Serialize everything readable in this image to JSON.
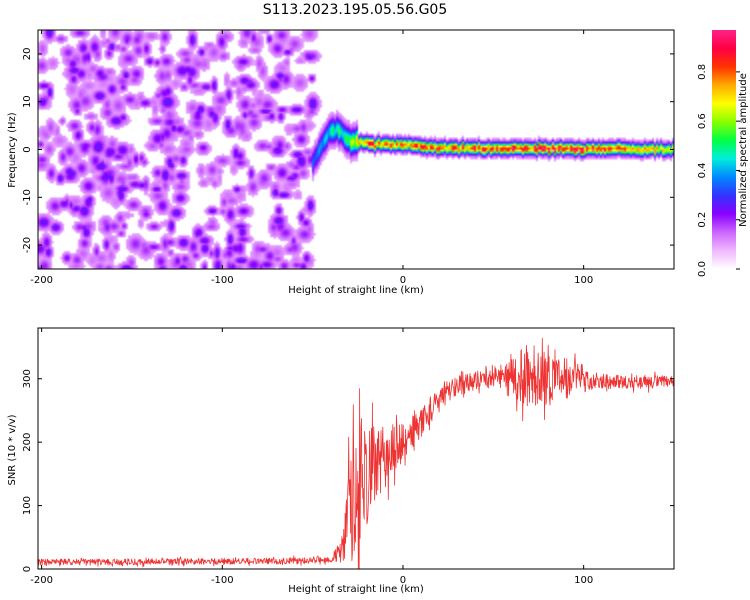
{
  "figure": {
    "title": "S113.2023.195.05.56.G05"
  },
  "chart_data": [
    {
      "type": "heatmap",
      "title": "S113.2023.195.05.56.G05",
      "xlabel": "Height of straight line (km)",
      "ylabel": "Frequency (Hz)",
      "xlim": [
        -202,
        150
      ],
      "ylim": [
        -25,
        25
      ],
      "x_ticks": [
        -200,
        -100,
        0,
        100
      ],
      "y_ticks": [
        -20,
        -10,
        0,
        10,
        20
      ],
      "grid": false,
      "noise_region": {
        "x_range": [
          -202,
          -50
        ],
        "y_range": [
          -25,
          25
        ],
        "max_amplitude": 0.2
      },
      "ridge": {
        "x_range": [
          -50,
          150
        ],
        "center_freq": [
          {
            "x": -50,
            "y": -3
          },
          {
            "x": -45,
            "y": 1
          },
          {
            "x": -40,
            "y": 4
          },
          {
            "x": -35,
            "y": 4
          },
          {
            "x": -30,
            "y": 2
          },
          {
            "x": -20,
            "y": 1.2
          },
          {
            "x": 0,
            "y": 1
          },
          {
            "x": 20,
            "y": 0.3
          },
          {
            "x": 60,
            "y": 0.2
          },
          {
            "x": 100,
            "y": 0.2
          },
          {
            "x": 150,
            "y": 0
          }
        ],
        "peak_amplitude": [
          {
            "x": -50,
            "y": 0.3
          },
          {
            "x": -30,
            "y": 0.5
          },
          {
            "x": -20,
            "y": 0.8
          },
          {
            "x": 0,
            "y": 0.75
          },
          {
            "x": 20,
            "y": 0.8
          },
          {
            "x": 60,
            "y": 0.85
          },
          {
            "x": 100,
            "y": 0.85
          },
          {
            "x": 150,
            "y": 0.6
          }
        ]
      },
      "colorbar": {
        "label": "Normalized spectral amplitude",
        "range": [
          0,
          0.97
        ],
        "ticks": [
          "0.0",
          "0.2",
          "0.4",
          "0.6",
          "0.8"
        ],
        "tick_values": [
          0,
          0.2,
          0.4,
          0.6,
          0.8
        ],
        "colors": [
          "#ffffff",
          "#f0b8ff",
          "#cc66ff",
          "#8800ff",
          "#3333ff",
          "#0088ff",
          "#00eedd",
          "#00ff44",
          "#88ff00",
          "#ffff00",
          "#ffaa00",
          "#ff3300",
          "#ff0044",
          "#ff2288"
        ]
      }
    },
    {
      "type": "line",
      "xlabel": "Height of straight line (km)",
      "ylabel": "SNR (10 * v/v)",
      "xlim": [
        -202,
        150
      ],
      "ylim": [
        0,
        380
      ],
      "x_ticks": [
        -200,
        -100,
        0,
        100
      ],
      "y_ticks": [
        0,
        100,
        200,
        300
      ],
      "grid": false,
      "color": "#ee3333",
      "series": [
        {
          "points": [
            {
              "x": -202,
              "y": 11
            },
            {
              "x": -150,
              "y": 11
            },
            {
              "x": -100,
              "y": 12
            },
            {
              "x": -60,
              "y": 13
            },
            {
              "x": -40,
              "y": 15
            },
            {
              "x": -33,
              "y": 30
            },
            {
              "x": -30,
              "y": 80
            },
            {
              "x": -26,
              "y": 140
            },
            {
              "x": -22,
              "y": 150
            },
            {
              "x": -18,
              "y": 155
            },
            {
              "x": -14,
              "y": 165
            },
            {
              "x": -10,
              "y": 175
            },
            {
              "x": -5,
              "y": 190
            },
            {
              "x": 0,
              "y": 200
            },
            {
              "x": 5,
              "y": 215
            },
            {
              "x": 10,
              "y": 232
            },
            {
              "x": 15,
              "y": 250
            },
            {
              "x": 20,
              "y": 265
            },
            {
              "x": 25,
              "y": 280
            },
            {
              "x": 30,
              "y": 290
            },
            {
              "x": 40,
              "y": 298
            },
            {
              "x": 50,
              "y": 302
            },
            {
              "x": 60,
              "y": 305
            },
            {
              "x": 70,
              "y": 305
            },
            {
              "x": 80,
              "y": 303
            },
            {
              "x": 100,
              "y": 298
            },
            {
              "x": 120,
              "y": 295
            },
            {
              "x": 150,
              "y": 295
            }
          ],
          "noise_amplitude": [
            {
              "x": -202,
              "y": 5
            },
            {
              "x": -40,
              "y": 5
            },
            {
              "x": -34,
              "y": 20
            },
            {
              "x": -30,
              "y": 90
            },
            {
              "x": -25,
              "y": 110
            },
            {
              "x": -15,
              "y": 60
            },
            {
              "x": 0,
              "y": 30
            },
            {
              "x": 20,
              "y": 18
            },
            {
              "x": 50,
              "y": 14
            },
            {
              "x": 60,
              "y": 25
            },
            {
              "x": 68,
              "y": 55
            },
            {
              "x": 75,
              "y": 50
            },
            {
              "x": 85,
              "y": 35
            },
            {
              "x": 95,
              "y": 30
            },
            {
              "x": 105,
              "y": 12
            },
            {
              "x": 150,
              "y": 10
            }
          ]
        }
      ]
    }
  ]
}
